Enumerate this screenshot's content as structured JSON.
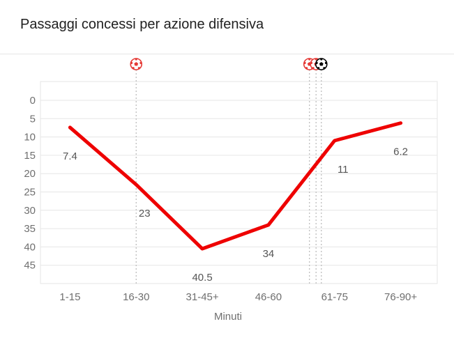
{
  "title": "Passaggi concessi per azione difensiva",
  "chart_data": {
    "type": "line",
    "xlabel": "Minuti",
    "ylabel": "",
    "ylim": [
      0,
      50
    ],
    "y_reversed": true,
    "y_ticks": [
      0,
      5,
      10,
      15,
      20,
      25,
      30,
      35,
      40,
      45
    ],
    "categories": [
      "1-15",
      "16-30",
      "31-45+",
      "46-60",
      "61-75",
      "76-90+"
    ],
    "series": [
      {
        "values": [
          7.4,
          23,
          40.5,
          34,
          11,
          6.2
        ],
        "labels": [
          "7.4",
          "23",
          "40.5",
          "34",
          "11",
          "6.2"
        ],
        "color": "#ee0000"
      }
    ],
    "events": [
      {
        "icon": "soccer-ball-red-icon",
        "x": 1.0,
        "color": "#e53935"
      },
      {
        "icon": "soccer-ball-red-icon",
        "x": 3.62,
        "color": "#e53935"
      },
      {
        "icon": "soccer-ball-red-icon",
        "x": 3.72,
        "color": "#e53935"
      },
      {
        "icon": "soccer-ball-black-icon",
        "x": 3.8,
        "color": "#000000"
      }
    ],
    "grid": true
  }
}
